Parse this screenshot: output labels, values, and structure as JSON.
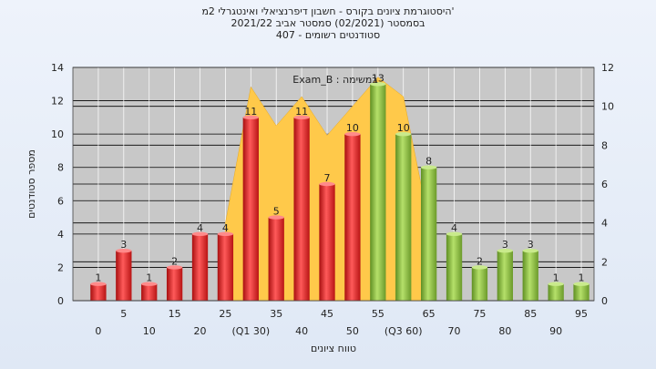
{
  "titles": {
    "line1": "'היסטוגרמת ציונים בקורס - חשבון דיפרנציאלי ואינטגרלי 2מ",
    "line2": "בסמסטר (02/2021) סמסטר אביב 2021/22",
    "line3": "סטודנטים רשומים - 407"
  },
  "chart_data": {
    "type": "bar",
    "x": [
      0,
      5,
      10,
      15,
      20,
      25,
      30,
      35,
      40,
      45,
      50,
      55,
      60,
      65,
      70,
      75,
      80,
      85,
      90,
      95
    ],
    "x_tick_labels": [
      "0",
      "5",
      "10",
      "15",
      "20",
      "25",
      "(Q1 30)",
      "35",
      "40",
      "45",
      "50",
      "55",
      "(Q3 60)",
      "65",
      "70",
      "75",
      "80",
      "85",
      "90",
      "95"
    ],
    "values": [
      1,
      3,
      1,
      2,
      4,
      4,
      11,
      5,
      11,
      7,
      10,
      13,
      10,
      8,
      4,
      2,
      3,
      3,
      1,
      1
    ],
    "bar_colors": [
      "red",
      "red",
      "red",
      "red",
      "red",
      "red",
      "red",
      "red",
      "red",
      "red",
      "red",
      "green",
      "green",
      "green",
      "green",
      "green",
      "green",
      "green",
      "green",
      "green"
    ],
    "colors": {
      "red": "#e02424",
      "green": "#8cbf3f",
      "area": "#ffc94a",
      "plot_bg": "#c8c8c8"
    },
    "area_series": {
      "name": "Exam_B : במשימה",
      "x": [
        25,
        30,
        35,
        40,
        45,
        50,
        55,
        60,
        65
      ],
      "values": [
        4,
        11,
        9,
        10.5,
        8.5,
        10,
        11.5,
        10.5,
        4
      ]
    },
    "xlabel": "טווח ציונים",
    "ylabel": "מספר סטודנטים",
    "ylim": [
      0,
      14
    ],
    "yticks": [
      0,
      2,
      4,
      6,
      8,
      10,
      12,
      14
    ],
    "y2lim": [
      0,
      12
    ],
    "y2ticks": [
      0,
      2,
      4,
      6,
      8,
      10,
      12
    ],
    "grid": true
  }
}
